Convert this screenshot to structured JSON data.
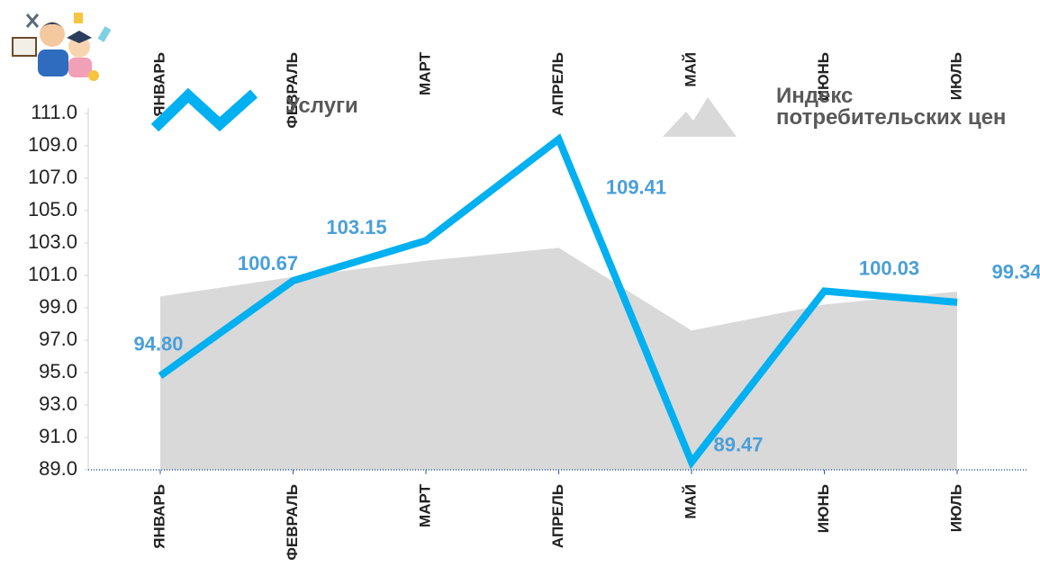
{
  "chart_data": {
    "type": "line-area",
    "categories": [
      "ЯНВАРЬ",
      "ФЕВРАЛЬ",
      "МАРТ",
      "АПРЕЛЬ",
      "МАЙ",
      "ИЮНЬ",
      "ИЮЛЬ"
    ],
    "series": [
      {
        "name": "Услуги",
        "color": "#00b0f0",
        "type": "line",
        "values": [
          94.8,
          100.67,
          103.15,
          109.41,
          89.47,
          100.03,
          99.34
        ],
        "value_labels": [
          "94.80",
          "100.67",
          "103.15",
          "109.41",
          "89.47",
          "100.03",
          "99.34"
        ],
        "label_color": "#4a9fd8"
      },
      {
        "name": "Индекс потребительских цен",
        "color": "#d9d9d9",
        "type": "area",
        "values": [
          99.7,
          100.9,
          101.9,
          102.7,
          97.6,
          99.2,
          100.0
        ]
      }
    ],
    "ylim": [
      89,
      111
    ],
    "yticks": [
      {
        "value": 89,
        "label": "89.0"
      },
      {
        "value": 91,
        "label": "91.0"
      },
      {
        "value": 93,
        "label": "93.0"
      },
      {
        "value": 95,
        "label": "95.0"
      },
      {
        "value": 97,
        "label": "97.0"
      },
      {
        "value": 99,
        "label": "99.0"
      },
      {
        "value": 101,
        "label": "101.0"
      },
      {
        "value": 103,
        "label": "103.0"
      },
      {
        "value": 105,
        "label": "105.0"
      },
      {
        "value": 107,
        "label": "107.0"
      },
      {
        "value": 109,
        "label": "109.0"
      },
      {
        "value": 111,
        "label": "111.0"
      }
    ]
  }
}
